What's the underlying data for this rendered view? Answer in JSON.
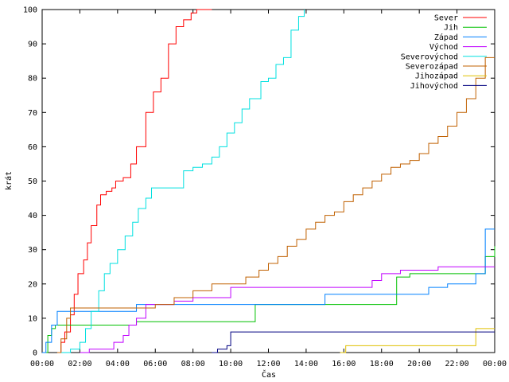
{
  "chart_data": {
    "type": "line",
    "title": "",
    "xlabel": "Čas",
    "ylabel": "krát",
    "xlim": [
      0,
      24
    ],
    "ylim": [
      0,
      100
    ],
    "x_ticks": [
      "00:00",
      "02:00",
      "04:00",
      "06:00",
      "08:00",
      "10:00",
      "12:00",
      "14:00",
      "16:00",
      "18:00",
      "20:00",
      "22:00",
      "00:00"
    ],
    "y_ticks": [
      0,
      10,
      20,
      30,
      40,
      50,
      60,
      70,
      80,
      90,
      100
    ],
    "grid": false,
    "legend_position": "top-right",
    "series": [
      {
        "name": "Sever",
        "color": "#ff0000",
        "x": [
          0.8,
          1.0,
          1.2,
          1.5,
          1.7,
          1.9,
          2.2,
          2.4,
          2.6,
          2.9,
          3.1,
          3.4,
          3.7,
          3.9,
          4.3,
          4.7,
          5.0,
          5.5,
          5.9,
          6.3,
          6.7,
          7.1,
          7.5,
          7.9,
          8.2,
          8.5,
          8.8,
          9.0
        ],
        "y": [
          0,
          3,
          6,
          11,
          17,
          23,
          27,
          32,
          37,
          43,
          46,
          47,
          48,
          50,
          51,
          55,
          60,
          70,
          76,
          80,
          90,
          95,
          97,
          99,
          100,
          100,
          100,
          100
        ]
      },
      {
        "name": "Jih",
        "color": "#00c000",
        "x": [
          0.0,
          0.3,
          0.5,
          0.7,
          1.0,
          3.0,
          5.0,
          7.0,
          9.0,
          10.5,
          11.1,
          11.3,
          12.0,
          14.0,
          15.0,
          17.0,
          18.5,
          18.8,
          19.5,
          21.0,
          23.0,
          23.5,
          24.0
        ],
        "y": [
          0,
          5,
          7,
          8,
          8,
          8,
          9,
          9,
          9,
          9,
          9,
          14,
          14,
          14,
          14,
          14,
          14,
          22,
          23,
          23,
          23,
          28,
          31
        ]
      },
      {
        "name": "Západ",
        "color": "#0080ff",
        "x": [
          0.0,
          0.2,
          0.5,
          0.8,
          2.0,
          4.0,
          4.5,
          5.0,
          7.0,
          10.0,
          13.0,
          14.8,
          15.0,
          17.0,
          19.0,
          20.5,
          21.5,
          23.0,
          23.5,
          24.0
        ],
        "y": [
          0,
          3,
          8,
          12,
          12,
          12,
          12,
          14,
          14,
          14,
          14,
          14,
          17,
          17,
          17,
          19,
          20,
          23,
          36,
          36
        ]
      },
      {
        "name": "Východ",
        "color": "#c000ff",
        "x": [
          2.0,
          2.5,
          3.0,
          3.5,
          3.8,
          4.3,
          4.6,
          5.0,
          5.5,
          6.0,
          7.0,
          7.5,
          8.0,
          10.0,
          12.0,
          14.0,
          16.0,
          17.0,
          17.5,
          18.0,
          19.0,
          21.0,
          22.0,
          23.0,
          23.5,
          24.0
        ],
        "y": [
          0,
          1,
          1,
          1,
          3,
          5,
          8,
          10,
          14,
          14,
          15,
          15,
          16,
          19,
          19,
          19,
          19,
          19,
          21,
          23,
          24,
          25,
          25,
          25,
          25,
          25
        ]
      },
      {
        "name": "Severovýchod",
        "color": "#00e0e0",
        "x": [
          1.0,
          1.5,
          2.0,
          2.3,
          2.6,
          3.0,
          3.3,
          3.6,
          4.0,
          4.4,
          4.8,
          5.1,
          5.5,
          5.8,
          6.2,
          7.0,
          7.5,
          8.0,
          8.5,
          9.0,
          9.4,
          9.8,
          10.2,
          10.6,
          11.0,
          11.6,
          12.0,
          12.4,
          12.8,
          13.2,
          13.6,
          13.9
        ],
        "y": [
          0,
          1,
          3,
          7,
          12,
          18,
          23,
          26,
          30,
          34,
          38,
          42,
          45,
          48,
          48,
          48,
          53,
          54,
          55,
          57,
          60,
          64,
          67,
          71,
          74,
          79,
          80,
          84,
          86,
          94,
          98,
          100
        ]
      },
      {
        "name": "Severozápad",
        "color": "#c06000",
        "x": [
          0.8,
          1.0,
          1.3,
          1.5,
          3.0,
          5.0,
          6.0,
          7.0,
          8.0,
          9.0,
          10.0,
          10.8,
          11.5,
          12.0,
          12.5,
          13.0,
          13.5,
          14.0,
          14.5,
          15.0,
          15.5,
          16.0,
          16.5,
          17.0,
          17.5,
          18.0,
          18.5,
          19.0,
          19.5,
          20.0,
          20.5,
          21.0,
          21.5,
          22.0,
          22.5,
          23.0,
          23.5,
          24.0
        ],
        "y": [
          0,
          4,
          10,
          13,
          13,
          13,
          14,
          16,
          18,
          20,
          20,
          22,
          24,
          26,
          28,
          31,
          33,
          36,
          38,
          40,
          41,
          44,
          46,
          48,
          50,
          52,
          54,
          55,
          56,
          58,
          61,
          63,
          66,
          70,
          74,
          80,
          86,
          86
        ]
      },
      {
        "name": "Jihozápad",
        "color": "#e0c000",
        "x": [
          15.8,
          16.1,
          18.0,
          20.0,
          22.0,
          22.7,
          23.0,
          24.0
        ],
        "y": [
          0,
          2,
          2,
          2,
          2,
          2,
          7,
          7
        ]
      },
      {
        "name": "Jihovýchod",
        "color": "#000080",
        "x": [
          9.0,
          9.3,
          9.8,
          10.0,
          12.0,
          14.0,
          16.0,
          18.0,
          20.0,
          22.0,
          24.0
        ],
        "y": [
          0,
          1,
          2,
          6,
          6,
          6,
          6,
          6,
          6,
          6,
          6
        ]
      }
    ]
  }
}
